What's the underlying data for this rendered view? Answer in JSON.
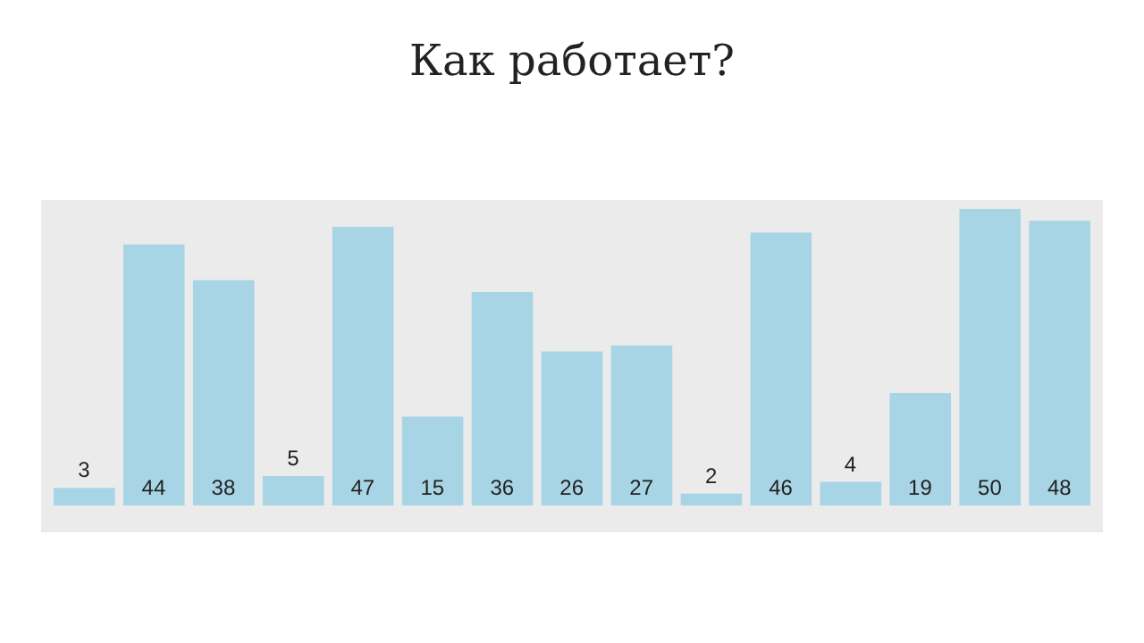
{
  "chart_data": {
    "type": "bar",
    "title": "Как работает?",
    "categories": [
      null,
      null,
      null,
      null,
      null,
      null,
      null,
      null,
      null,
      null,
      null,
      null,
      null,
      null,
      null
    ],
    "values": [
      3,
      44,
      38,
      5,
      47,
      15,
      36,
      26,
      27,
      2,
      46,
      4,
      19,
      50,
      48
    ],
    "color": "#a8d5e5",
    "data_labels": true,
    "grid": false,
    "legend": false,
    "tick_labels": false
  }
}
